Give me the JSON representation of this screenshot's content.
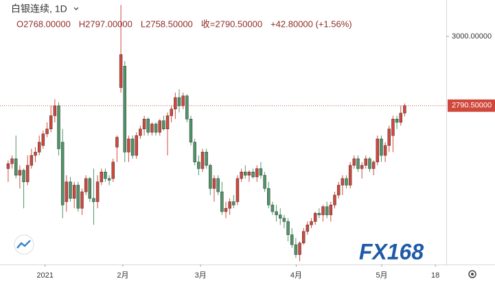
{
  "chart_data": {
    "type": "candlestick",
    "title": "白银连续, 1D",
    "header": [
      "O2768.00000",
      "H2797.00000",
      "L2758.50000",
      "收=2790.50000",
      "+42.80000 (+1.56%)"
    ],
    "watermark": "FX168",
    "up_color": "#d0483c",
    "down_color": "#4f9568",
    "ylim": [
      2310,
      3110
    ],
    "yticks": [
      {
        "value": 3000,
        "label": "3000.00000"
      }
    ],
    "last_price": {
      "value": 2790.5,
      "label": "2790.50000"
    },
    "xlim": [
      -2.1,
      112.7
    ],
    "xticks": [
      {
        "value": 9.5,
        "label": "2021"
      },
      {
        "value": 29.5,
        "label": "2月"
      },
      {
        "value": 49.5,
        "label": "3月"
      },
      {
        "value": 74.1,
        "label": "4月"
      },
      {
        "value": 96.1,
        "label": "5月"
      },
      {
        "value": 109.9,
        "label": "18"
      }
    ],
    "candles": [
      [
        2600,
        2625,
        2560,
        2615
      ],
      [
        2615,
        2640,
        2600,
        2630
      ],
      [
        2630,
        2700,
        2570,
        2580
      ],
      [
        2580,
        2610,
        2540,
        2595
      ],
      [
        2595,
        2600,
        2480,
        2560
      ],
      [
        2560,
        2640,
        2550,
        2610
      ],
      [
        2610,
        2660,
        2600,
        2640
      ],
      [
        2640,
        2665,
        2620,
        2650
      ],
      [
        2650,
        2700,
        2640,
        2680
      ],
      [
        2670,
        2715,
        2660,
        2705
      ],
      [
        2705,
        2740,
        2695,
        2720
      ],
      [
        2720,
        2790,
        2710,
        2760
      ],
      [
        2760,
        2810,
        2740,
        2790
      ],
      [
        2790,
        2800,
        2640,
        2660
      ],
      [
        2680,
        2720,
        2450,
        2490
      ],
      [
        2500,
        2580,
        2470,
        2560
      ],
      [
        2560,
        2575,
        2500,
        2510
      ],
      [
        2510,
        2560,
        2480,
        2550
      ],
      [
        2550,
        2560,
        2470,
        2480
      ],
      [
        2480,
        2540,
        2460,
        2530
      ],
      [
        2530,
        2580,
        2520,
        2570
      ],
      [
        2570,
        2575,
        2500,
        2510
      ],
      [
        2510,
        2600,
        2430,
        2500
      ],
      [
        2500,
        2580,
        2480,
        2560
      ],
      [
        2560,
        2600,
        2550,
        2590
      ],
      [
        2590,
        2600,
        2560,
        2570
      ],
      [
        2570,
        2580,
        2550,
        2565
      ],
      [
        2570,
        2630,
        2560,
        2620
      ],
      [
        2665,
        2700,
        2620,
        2695
      ],
      [
        2845,
        3095,
        2830,
        2945
      ],
      [
        2910,
        2925,
        2620,
        2650
      ],
      [
        2650,
        2700,
        2620,
        2690
      ],
      [
        2690,
        2700,
        2630,
        2640
      ],
      [
        2640,
        2710,
        2630,
        2700
      ],
      [
        2700,
        2730,
        2690,
        2720
      ],
      [
        2720,
        2760,
        2700,
        2750
      ],
      [
        2750,
        2755,
        2700,
        2710
      ],
      [
        2710,
        2740,
        2700,
        2735
      ],
      [
        2735,
        2740,
        2700,
        2710
      ],
      [
        2710,
        2750,
        2700,
        2745
      ],
      [
        2745,
        2760,
        2715,
        2720
      ],
      [
        2720,
        2770,
        2640,
        2760
      ],
      [
        2760,
        2790,
        2740,
        2780
      ],
      [
        2780,
        2830,
        2750,
        2815
      ],
      [
        2815,
        2840,
        2770,
        2790
      ],
      [
        2790,
        2830,
        2780,
        2820
      ],
      [
        2820,
        2825,
        2740,
        2750
      ],
      [
        2750,
        2760,
        2670,
        2680
      ],
      [
        2680,
        2690,
        2610,
        2620
      ],
      [
        2620,
        2640,
        2580,
        2600
      ],
      [
        2600,
        2660,
        2590,
        2650
      ],
      [
        2650,
        2660,
        2600,
        2610
      ],
      [
        2610,
        2615,
        2520,
        2540
      ],
      [
        2540,
        2580,
        2500,
        2570
      ],
      [
        2570,
        2580,
        2520,
        2530
      ],
      [
        2530,
        2560,
        2460,
        2470
      ],
      [
        2470,
        2500,
        2450,
        2480
      ],
      [
        2480,
        2510,
        2460,
        2500
      ],
      [
        2500,
        2520,
        2480,
        2490
      ],
      [
        2500,
        2580,
        2490,
        2570
      ],
      [
        2570,
        2600,
        2560,
        2590
      ],
      [
        2590,
        2610,
        2570,
        2580
      ],
      [
        2580,
        2595,
        2560,
        2590
      ],
      [
        2590,
        2600,
        2570,
        2575
      ],
      [
        2575,
        2610,
        2560,
        2600
      ],
      [
        2600,
        2620,
        2570,
        2580
      ],
      [
        2580,
        2590,
        2530,
        2540
      ],
      [
        2540,
        2560,
        2480,
        2490
      ],
      [
        2490,
        2500,
        2460,
        2470
      ],
      [
        2470,
        2490,
        2440,
        2460
      ],
      [
        2460,
        2480,
        2430,
        2450
      ],
      [
        2450,
        2460,
        2420,
        2440
      ],
      [
        2440,
        2450,
        2380,
        2400
      ],
      [
        2400,
        2420,
        2360,
        2370
      ],
      [
        2370,
        2390,
        2330,
        2340
      ],
      [
        2340,
        2380,
        2320,
        2375
      ],
      [
        2375,
        2420,
        2370,
        2410
      ],
      [
        2410,
        2440,
        2400,
        2430
      ],
      [
        2430,
        2450,
        2420,
        2440
      ],
      [
        2440,
        2470,
        2430,
        2465
      ],
      [
        2465,
        2480,
        2450,
        2460
      ],
      [
        2460,
        2490,
        2440,
        2485
      ],
      [
        2485,
        2500,
        2450,
        2460
      ],
      [
        2460,
        2500,
        2440,
        2490
      ],
      [
        2490,
        2530,
        2480,
        2520
      ],
      [
        2520,
        2560,
        2510,
        2550
      ],
      [
        2550,
        2580,
        2520,
        2570
      ],
      [
        2570,
        2580,
        2540,
        2550
      ],
      [
        2550,
        2620,
        2540,
        2610
      ],
      [
        2610,
        2640,
        2600,
        2630
      ],
      [
        2630,
        2640,
        2590,
        2600
      ],
      [
        2600,
        2620,
        2570,
        2610
      ],
      [
        2610,
        2640,
        2600,
        2630
      ],
      [
        2630,
        2635,
        2590,
        2600
      ],
      [
        2600,
        2625,
        2580,
        2620
      ],
      [
        2620,
        2700,
        2610,
        2690
      ],
      [
        2690,
        2700,
        2620,
        2640
      ],
      [
        2640,
        2680,
        2620,
        2670
      ],
      [
        2670,
        2730,
        2650,
        2720
      ],
      [
        2700,
        2760,
        2650,
        2750
      ],
      [
        2750,
        2760,
        2720,
        2740
      ],
      [
        2740,
        2790,
        2730,
        2768
      ],
      [
        2768,
        2797,
        2758.5,
        2790.5
      ]
    ]
  }
}
